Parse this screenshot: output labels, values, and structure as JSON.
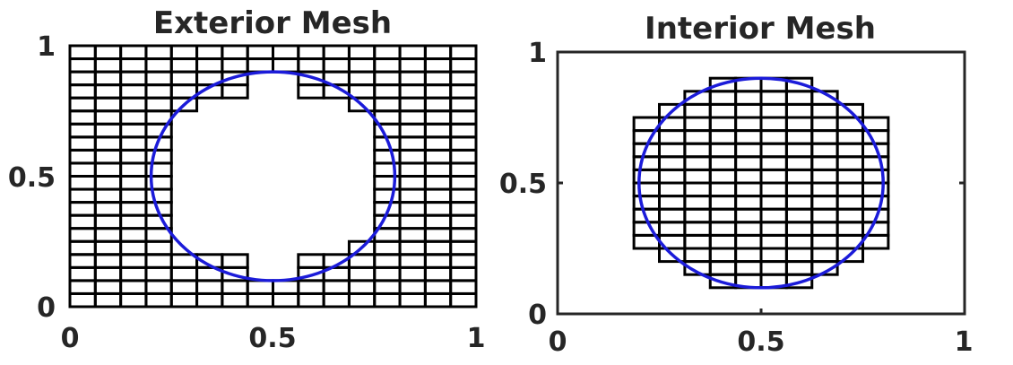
{
  "chart_data": [
    {
      "type": "mesh",
      "title": "Exterior Mesh",
      "xlim": [
        0,
        1
      ],
      "ylim": [
        0,
        1
      ],
      "xticks": [
        "0",
        "0.5",
        "1"
      ],
      "yticks": [
        "0",
        "0.5",
        "1"
      ],
      "mesh": {
        "nx": 16,
        "ny": 20,
        "cell_width": 0.0625,
        "cell_height": 0.05,
        "region": "outside",
        "hole_row_spans_by_y": [
          {
            "y": [
              0.1,
              0.15
            ],
            "x": [
              0.4375,
              0.5625
            ]
          },
          {
            "y": [
              0.15,
              0.2
            ],
            "x": [
              0.4375,
              0.5625
            ]
          },
          {
            "y": [
              0.2,
              0.25
            ],
            "x": [
              0.25,
              0.6875
            ]
          },
          {
            "y": [
              0.25,
              0.3
            ],
            "x": [
              0.25,
              0.75
            ]
          },
          {
            "y": [
              0.3,
              0.7
            ],
            "x": [
              0.25,
              0.75
            ]
          },
          {
            "y": [
              0.7,
              0.75
            ],
            "x": [
              0.25,
              0.75
            ]
          },
          {
            "y": [
              0.75,
              0.8
            ],
            "x": [
              0.3125,
              0.6875
            ]
          },
          {
            "y": [
              0.8,
              0.85
            ],
            "x": [
              0.4375,
              0.5625
            ]
          },
          {
            "y": [
              0.85,
              0.9
            ],
            "x": [
              0.4375,
              0.5625
            ]
          }
        ]
      },
      "circle": {
        "center": [
          0.5,
          0.5
        ],
        "rx": 0.3,
        "ry": 0.4
      },
      "colors": {
        "mesh": "#000000",
        "circle": "#1b1bd9"
      }
    },
    {
      "type": "mesh",
      "title": "Interior Mesh",
      "xlim": [
        0,
        1
      ],
      "ylim": [
        0,
        1
      ],
      "xticks": [
        "0",
        "0.5",
        "1"
      ],
      "yticks": [
        "0",
        "0.5",
        "1"
      ],
      "mesh": {
        "nx": 16,
        "ny": 20,
        "cell_width": 0.0625,
        "cell_height": 0.05,
        "region": "inside",
        "row_spans_by_y": [
          {
            "y": [
              0.1,
              0.15
            ],
            "x": [
              0.375,
              0.625
            ]
          },
          {
            "y": [
              0.15,
              0.2
            ],
            "x": [
              0.3125,
              0.6875
            ]
          },
          {
            "y": [
              0.2,
              0.25
            ],
            "x": [
              0.25,
              0.75
            ]
          },
          {
            "y": [
              0.25,
              0.3
            ],
            "x": [
              0.1875,
              0.8125
            ]
          },
          {
            "y": [
              0.3,
              0.7
            ],
            "x": [
              0.1875,
              0.8125
            ]
          },
          {
            "y": [
              0.7,
              0.75
            ],
            "x": [
              0.1875,
              0.8125
            ]
          },
          {
            "y": [
              0.75,
              0.8
            ],
            "x": [
              0.25,
              0.75
            ]
          },
          {
            "y": [
              0.8,
              0.85
            ],
            "x": [
              0.3125,
              0.6875
            ]
          },
          {
            "y": [
              0.85,
              0.9
            ],
            "x": [
              0.375,
              0.625
            ]
          }
        ]
      },
      "circle": {
        "center": [
          0.5,
          0.5
        ],
        "rx": 0.3,
        "ry": 0.4
      },
      "colors": {
        "mesh": "#000000",
        "circle": "#1b1bd9"
      }
    }
  ]
}
